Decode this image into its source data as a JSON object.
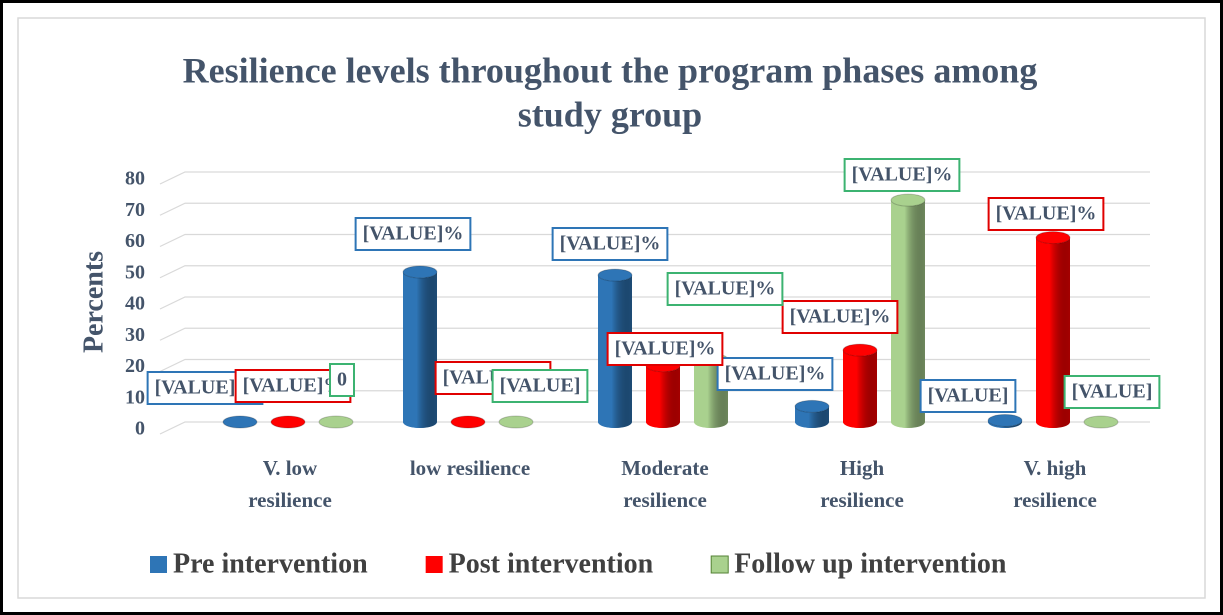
{
  "chart_data": {
    "type": "bar3d",
    "title": "Resilience levels throughout the program phases among",
    "title_line2": "study group",
    "ylabel": "Percents",
    "categories": [
      "V. low resilience",
      "low resilience",
      "Moderate resilience",
      "High resilience",
      "V. high resilience"
    ],
    "category_lines": [
      [
        "V. low",
        "resilience"
      ],
      [
        "low resilience"
      ],
      [
        "Moderate",
        "resilience"
      ],
      [
        "High",
        "resilience"
      ],
      [
        "V. high",
        "resilience"
      ]
    ],
    "ylim": [
      0,
      80
    ],
    "yticks": [
      0,
      10,
      20,
      30,
      40,
      50,
      60,
      70,
      80
    ],
    "grid": true,
    "legend": "bottom",
    "series": [
      {
        "name": "Pre intervention",
        "color": "#2e75b6",
        "values": [
          0,
          48,
          47,
          5,
          0.5
        ],
        "value_labels": [
          "[VALUE]%",
          "[VALUE]%",
          "[VALUE]%",
          "[VALUE]%",
          "[VALUE]"
        ]
      },
      {
        "name": "Post intervention",
        "color": "#ff0000",
        "values": [
          0,
          0,
          18,
          23,
          59
        ],
        "value_labels": [
          "[VALUE]%",
          "[VALUE]%",
          "[VALUE]%",
          "[VALUE]%",
          "[VALUE]%"
        ]
      },
      {
        "name": "Follow up intervention",
        "color": "#a9d18e",
        "values": [
          0,
          0,
          20,
          71,
          0
        ],
        "value_labels": [
          "0",
          "[VALUE]",
          "[VALUE]%",
          "[VALUE]%",
          "[VALUE]"
        ]
      }
    ]
  }
}
